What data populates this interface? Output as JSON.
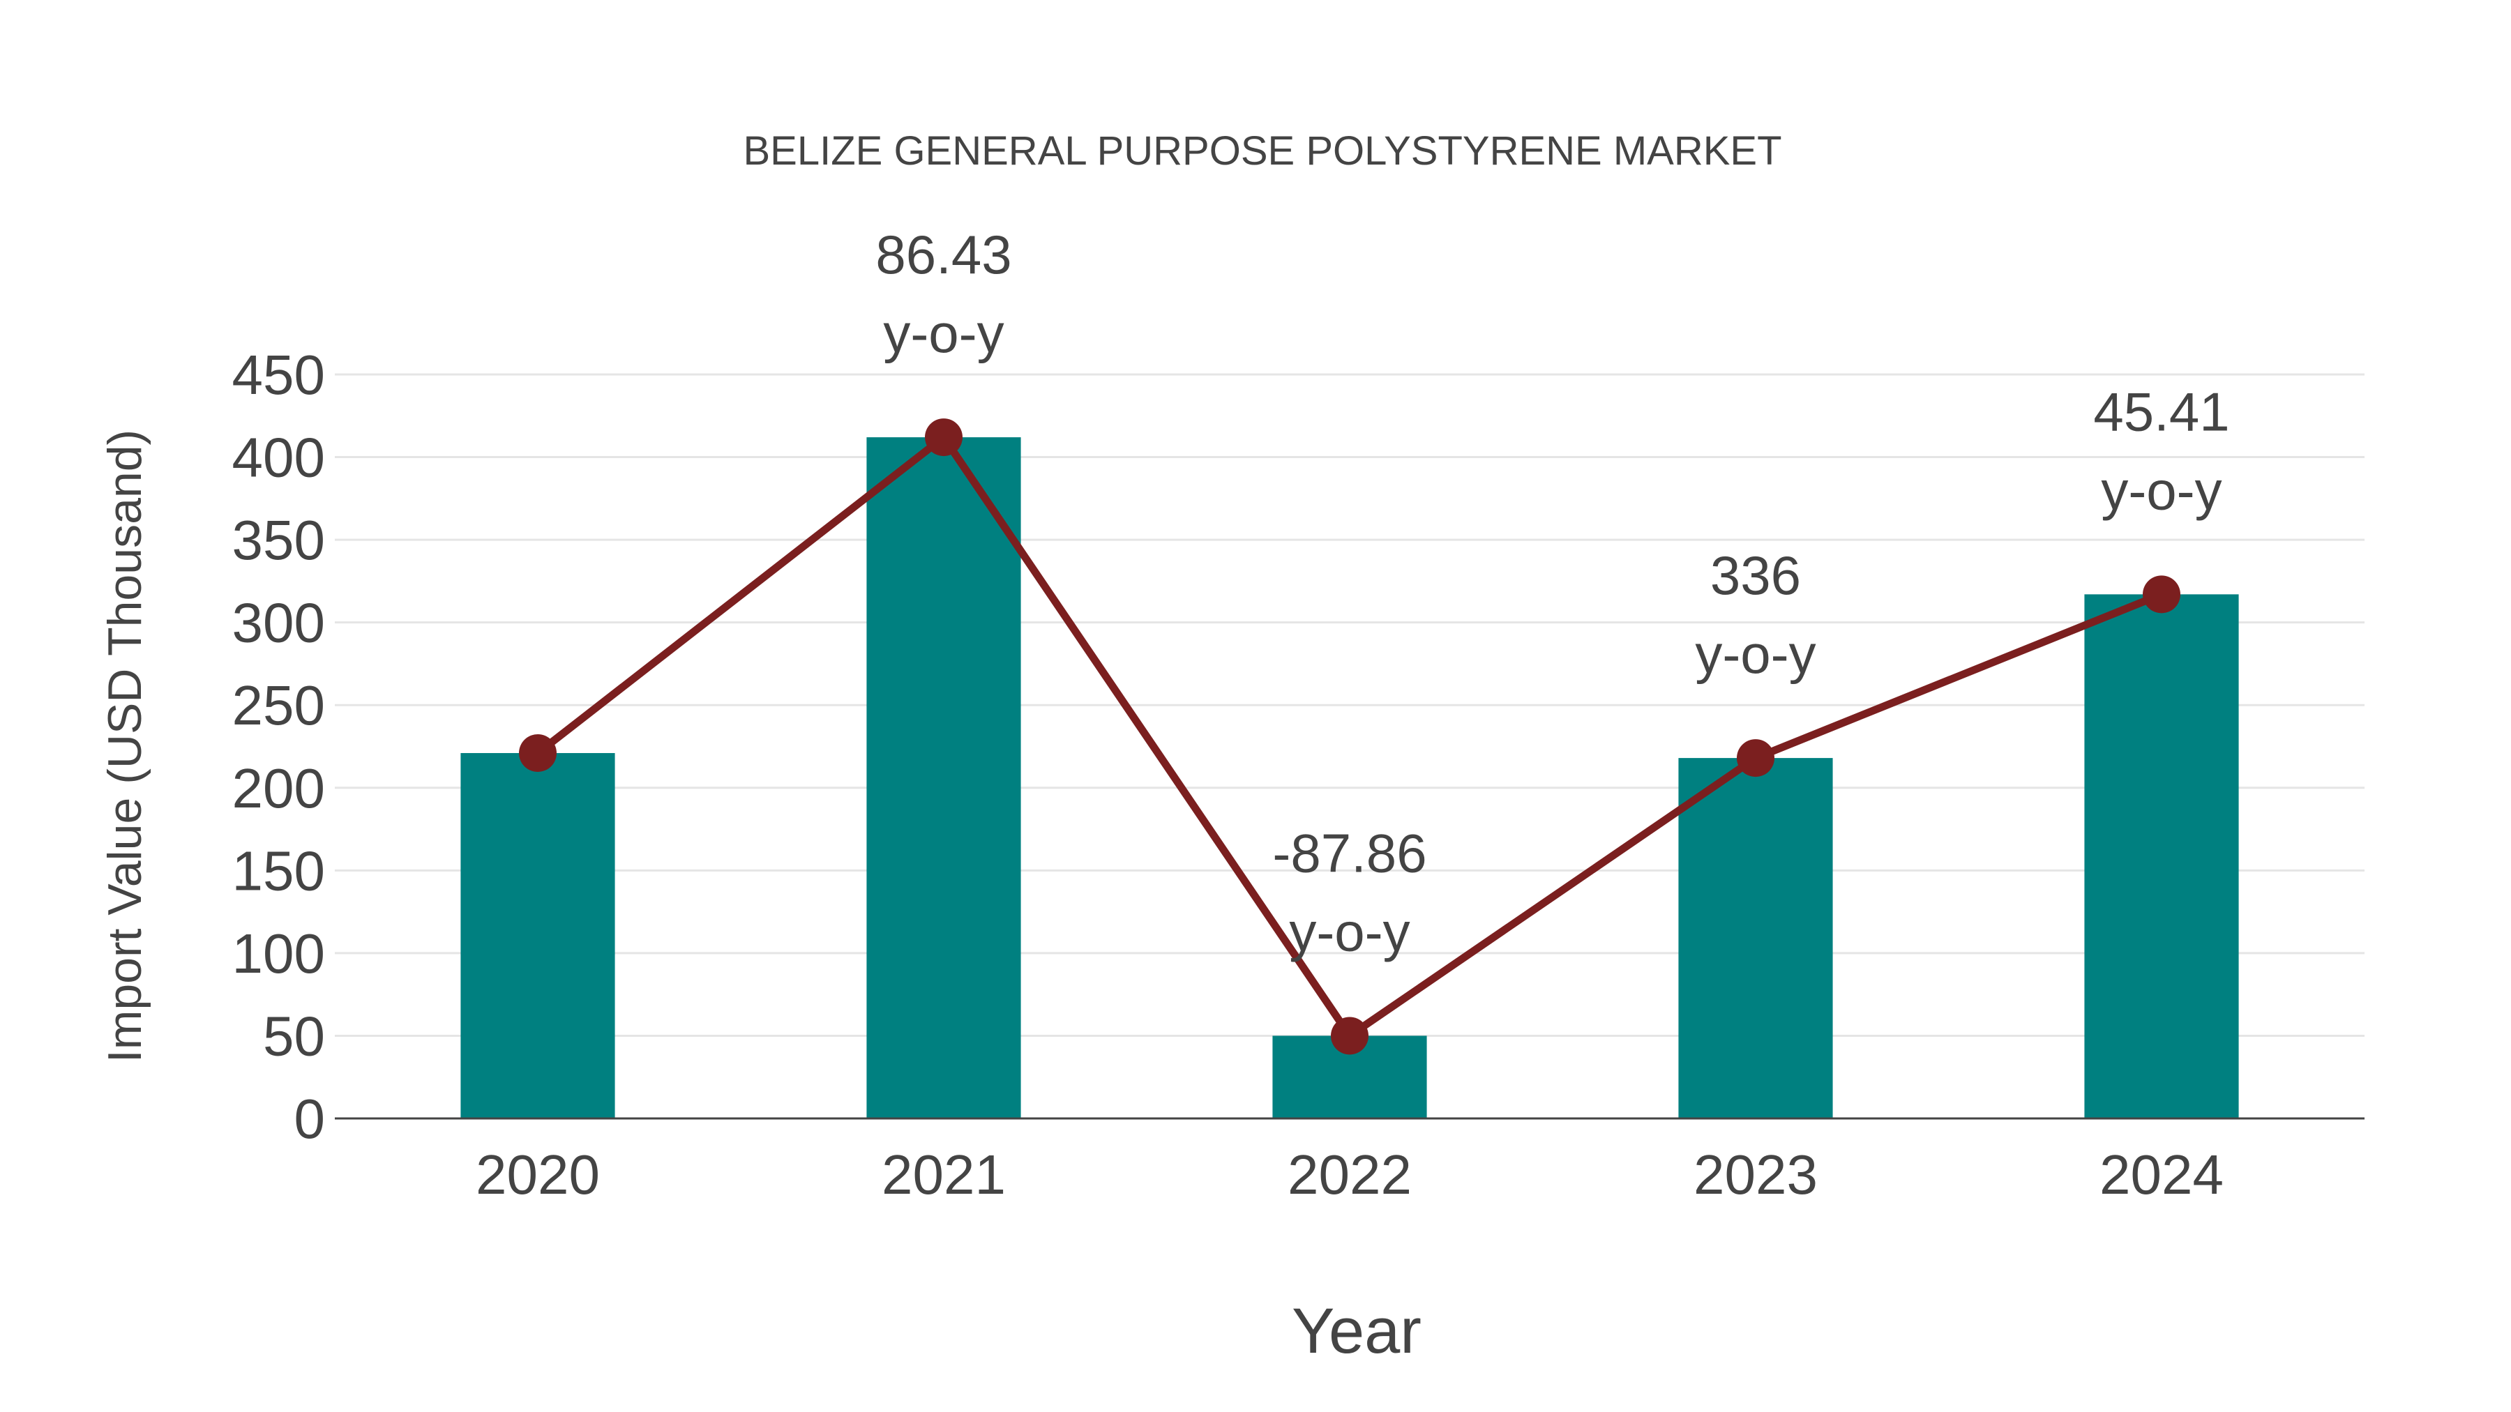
{
  "chart_data": {
    "type": "bar+line",
    "title": "BELIZE GENERAL PURPOSE POLYSTYRENE MARKET",
    "xlabel": "Year",
    "ylabel": "Import Value (USD Thousand)",
    "categories": [
      "2020",
      "2021",
      "2022",
      "2023",
      "2024"
    ],
    "series": [
      {
        "name": "Import Value (bar)",
        "type": "bar",
        "color": "#008080",
        "values": [
          221,
          412,
          50,
          218,
          317
        ]
      },
      {
        "name": "Import Value (line)",
        "type": "line",
        "color": "#7B1F1F",
        "values": [
          221,
          412,
          50,
          218,
          317
        ]
      }
    ],
    "annotations": [
      {
        "category": "2021",
        "value": "86.43",
        "suffix": "y-o-y"
      },
      {
        "category": "2022",
        "value": "-87.86",
        "suffix": "y-o-y"
      },
      {
        "category": "2023",
        "value": "336",
        "suffix": "y-o-y"
      },
      {
        "category": "2024",
        "value": "45.41",
        "suffix": "y-o-y"
      }
    ],
    "yticks": [
      0,
      50,
      100,
      150,
      200,
      250,
      300,
      350,
      400,
      450
    ],
    "ylim": [
      0,
      450
    ],
    "grid": true,
    "legend": "none"
  }
}
